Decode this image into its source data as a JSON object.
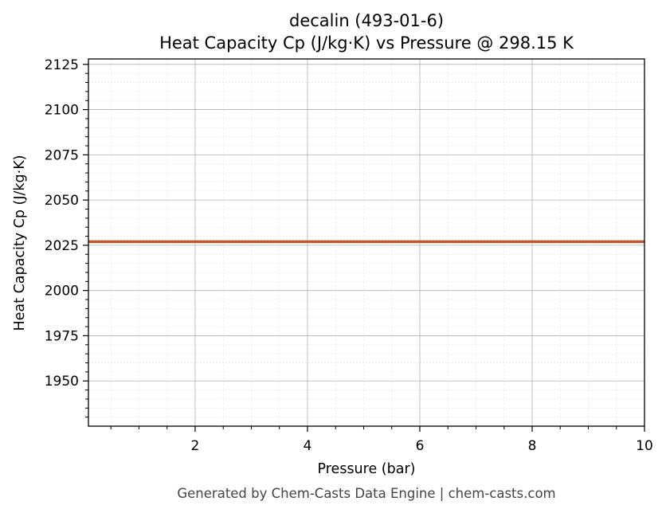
{
  "chart_data": {
    "type": "line",
    "title": "decalin (493-01-6)",
    "subtitle": "Heat Capacity Cp (J/kg·K) vs Pressure @ 298.15 K",
    "xlabel": "Pressure (bar)",
    "ylabel": "Heat Capacity Cp (J/kg·K)",
    "xlim": [
      0.1,
      10
    ],
    "ylim": [
      1925,
      2128
    ],
    "xticks": [
      2,
      4,
      6,
      8,
      10
    ],
    "yticks": [
      1950,
      1975,
      2000,
      2025,
      2050,
      2075,
      2100,
      2125
    ],
    "grid": true,
    "minor_grid": true,
    "series": [
      {
        "x": [
          0.1,
          10
        ],
        "y": [
          2027,
          2027
        ],
        "color": "#c0562b"
      }
    ]
  },
  "footer": "Generated by Chem-Casts Data Engine | chem-casts.com"
}
